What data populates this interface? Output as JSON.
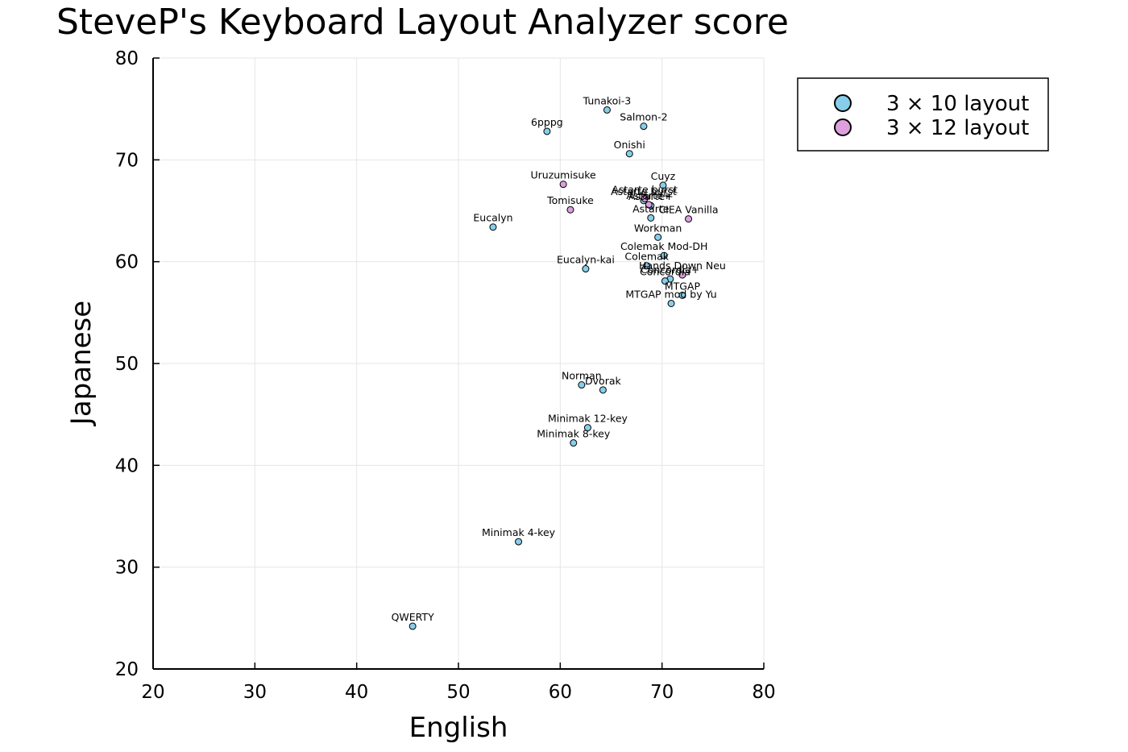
{
  "chart_data": {
    "type": "scatter",
    "title": "SteveP's Keyboard Layout Analyzer score",
    "xlabel": "English",
    "ylabel": "Japanese",
    "xlim": [
      20,
      80
    ],
    "ylim": [
      20,
      80
    ],
    "xticks": [
      "20",
      "30",
      "40",
      "50",
      "60",
      "70",
      "80"
    ],
    "yticks": [
      "20",
      "30",
      "40",
      "50",
      "60",
      "70",
      "80"
    ],
    "grid": true,
    "legend_position": "outside-top-right",
    "series": [
      {
        "name": "3 × 10 layout",
        "color": "#87ceeb",
        "points": [
          {
            "label": "Tunakoi-3",
            "x": 64.6,
            "y": 74.9
          },
          {
            "label": "Salmon-2",
            "x": 68.2,
            "y": 73.3
          },
          {
            "label": "6pppg",
            "x": 58.7,
            "y": 72.8
          },
          {
            "label": "Onishi",
            "x": 66.8,
            "y": 70.6
          },
          {
            "label": "Cuyz",
            "x": 70.1,
            "y": 67.5
          },
          {
            "label": "Astarte burst",
            "x": 68.2,
            "y": 66.0
          },
          {
            "label": "Astarte+",
            "x": 68.9,
            "y": 65.5
          },
          {
            "label": "Astarte",
            "x": 68.9,
            "y": 64.3
          },
          {
            "label": "Eucalyn",
            "x": 53.4,
            "y": 63.4
          },
          {
            "label": "Workman",
            "x": 69.6,
            "y": 62.4
          },
          {
            "label": "Colemak Mod-DH",
            "x": 70.2,
            "y": 60.6
          },
          {
            "label": "Colemak",
            "x": 68.5,
            "y": 59.6
          },
          {
            "label": "Eucalyn-kai",
            "x": 62.5,
            "y": 59.3
          },
          {
            "label": "Concordia+",
            "x": 70.8,
            "y": 58.3
          },
          {
            "label": "Concordia",
            "x": 70.3,
            "y": 58.1
          },
          {
            "label": "MTGAP",
            "x": 72.0,
            "y": 56.7
          },
          {
            "label": "MTGAP mod by Yu",
            "x": 70.9,
            "y": 55.9
          },
          {
            "label": "Norman",
            "x": 62.1,
            "y": 47.9
          },
          {
            "label": "Dvorak",
            "x": 64.2,
            "y": 47.4
          },
          {
            "label": "Minimak 12-key",
            "x": 62.7,
            "y": 43.7
          },
          {
            "label": "Minimak 8-key",
            "x": 61.3,
            "y": 42.2
          },
          {
            "label": "Minimak 4-key",
            "x": 55.9,
            "y": 32.5
          },
          {
            "label": "QWERTY",
            "x": 45.5,
            "y": 24.2
          }
        ]
      },
      {
        "name": "3 × 12 layout",
        "color": "#dda0dd",
        "points": [
          {
            "label": "Uruzumisuke",
            "x": 60.3,
            "y": 67.6
          },
          {
            "label": "Tomisuke",
            "x": 61.0,
            "y": 65.1
          },
          {
            "label": "Astarte burst",
            "x": 68.3,
            "y": 66.2
          },
          {
            "label": "Astarte+",
            "x": 68.7,
            "y": 65.6
          },
          {
            "label": "CIEA Vanilla",
            "x": 72.6,
            "y": 64.2
          },
          {
            "label": "Hands Down Neu",
            "x": 72.0,
            "y": 58.7
          }
        ]
      }
    ]
  }
}
